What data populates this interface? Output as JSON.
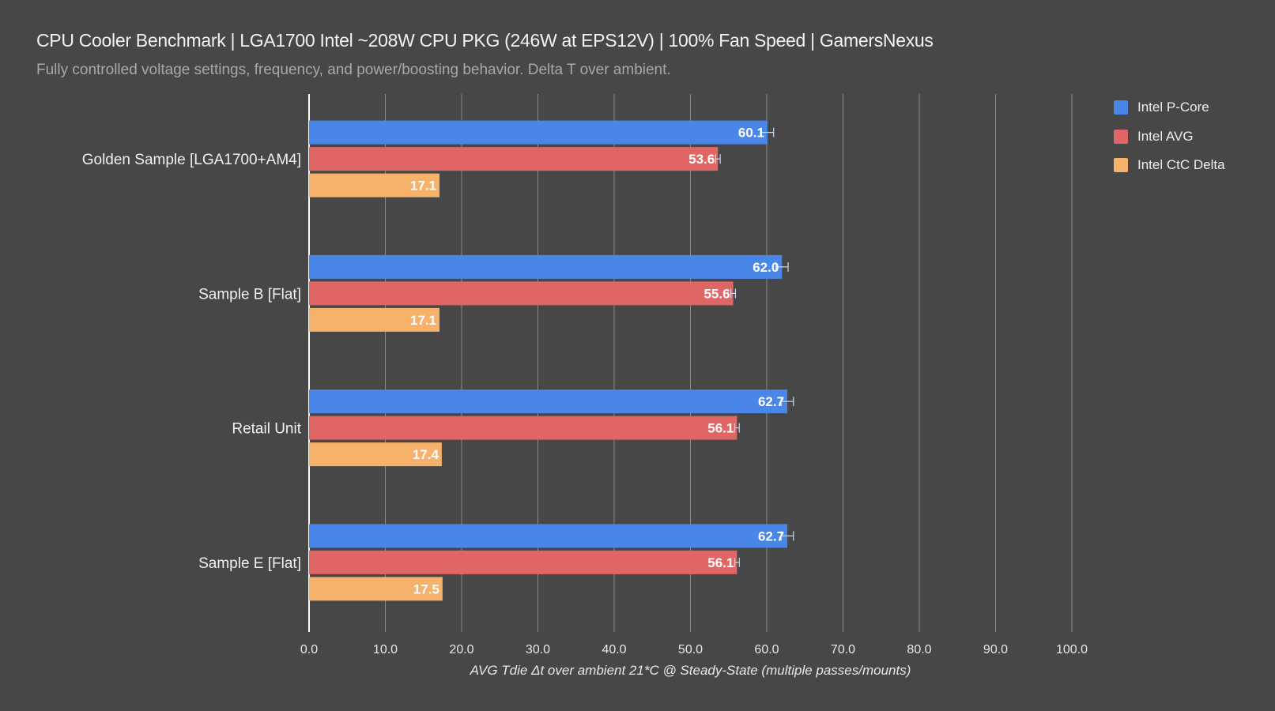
{
  "chart_data": {
    "type": "bar",
    "orientation": "horizontal",
    "title": "CPU Cooler Benchmark | LGA1700 Intel ~208W CPU PKG (246W at EPS12V) | 100% Fan Speed | GamersNexus",
    "subtitle": "Fully controlled voltage settings, frequency, and power/boosting behavior. Delta T over ambient.",
    "xlabel": "AVG Tdie Δt over ambient 21*C @ Steady-State (multiple passes/mounts)",
    "ylabel": "",
    "xlim": [
      0,
      100
    ],
    "ticks": [
      "0.0",
      "10.0",
      "20.0",
      "30.0",
      "40.0",
      "50.0",
      "60.0",
      "70.0",
      "80.0",
      "90.0",
      "100.0"
    ],
    "grid": true,
    "legend_position": "top-right",
    "categories": [
      "Golden Sample [LGA1700+AM4]",
      "Sample B [Flat]",
      "Retail Unit",
      "Sample E [Flat]"
    ],
    "series": [
      {
        "name": "Intel P-Core",
        "color": "#4a86e8",
        "values": [
          60.1,
          62.0,
          62.7,
          62.7
        ],
        "labels": [
          "60.1",
          "62.0",
          "62.7",
          "62.7"
        ],
        "error": [
          0.8,
          0.8,
          0.8,
          0.8
        ]
      },
      {
        "name": "Intel AVG",
        "color": "#e06666",
        "values": [
          53.6,
          55.6,
          56.1,
          56.1
        ],
        "labels": [
          "53.6",
          "55.6",
          "56.1",
          "56.1"
        ],
        "error": [
          0.3,
          0.3,
          0.3,
          0.3
        ]
      },
      {
        "name": "Intel CtC Delta",
        "color": "#f6b26b",
        "values": [
          17.1,
          17.1,
          17.4,
          17.5
        ],
        "labels": [
          "17.1",
          "17.1",
          "17.4",
          "17.5"
        ],
        "error": [
          0,
          0,
          0,
          0
        ]
      }
    ]
  }
}
